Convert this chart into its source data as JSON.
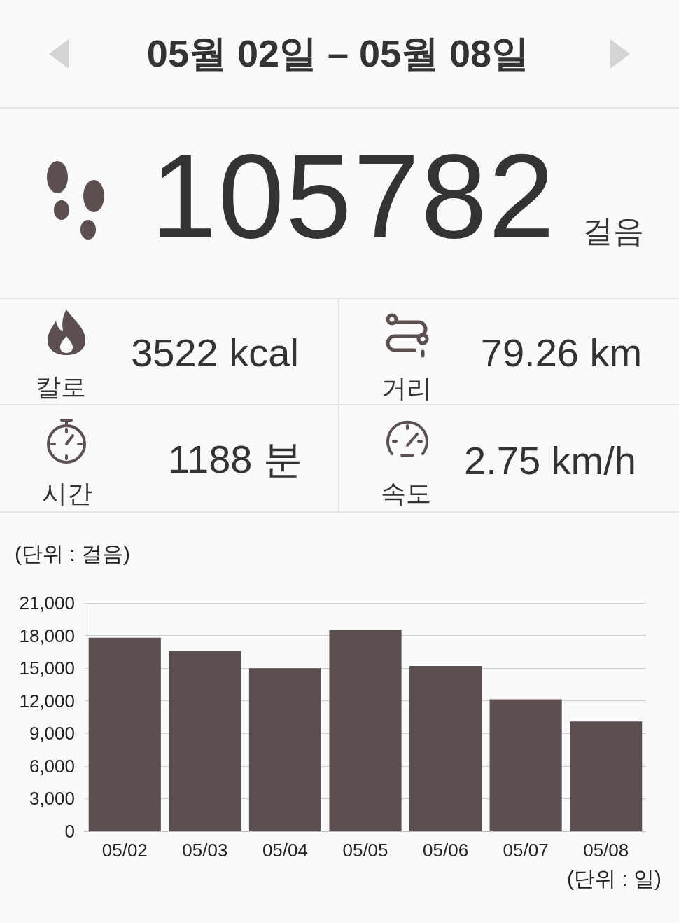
{
  "chart_data": [
    {
      "type": "other",
      "title": "05월 02일 – 05월 08일",
      "annotations": [
        "105782",
        "걸음",
        "3522 kcal",
        "칼로",
        "79.26 km",
        "거리",
        "1188 분",
        "시간",
        "2.75 km/h",
        "속도"
      ]
    },
    {
      "type": "bar",
      "ylabel": "(단위 : 걸음)",
      "xlabel": "(단위 : 일)",
      "categories": [
        "05/02",
        "05/03",
        "05/04",
        "05/05",
        "05/06",
        "05/07",
        "05/08"
      ],
      "values": [
        17800,
        16600,
        15000,
        18500,
        15200,
        12150,
        10100
      ],
      "color": "#5c4f4f",
      "ylim": [
        0,
        21000
      ],
      "yticks": [
        {
          "value": 0,
          "label": "0"
        },
        {
          "value": 3000,
          "label": "3,000"
        },
        {
          "value": 6000,
          "label": "6,000"
        },
        {
          "value": 9000,
          "label": "9,000"
        },
        {
          "value": 12000,
          "label": "12,000"
        },
        {
          "value": 15000,
          "label": "15,000"
        },
        {
          "value": 18000,
          "label": "18,000"
        },
        {
          "value": 21000,
          "label": "21,000"
        }
      ],
      "grid": "y"
    }
  ]
}
